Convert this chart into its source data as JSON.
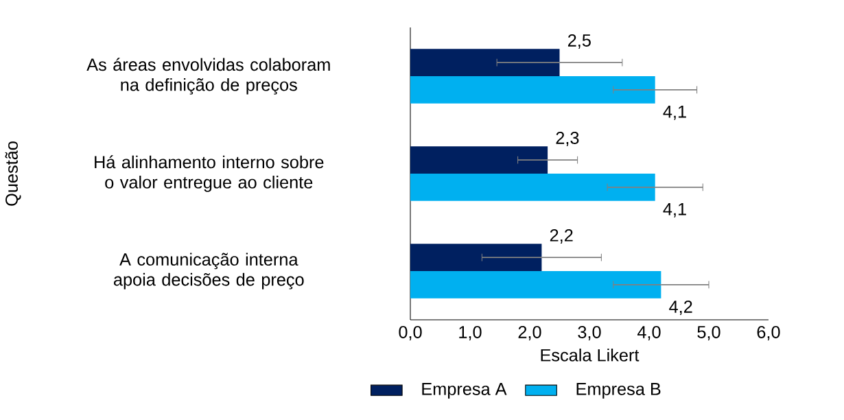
{
  "chart_data": {
    "type": "bar",
    "orientation": "horizontal",
    "categories": [
      "As áreas envolvidas colaboram na definição de preços",
      "Há alinhamento interno sobre o valor entregue ao cliente",
      "A comunicação interna apoia decisões de preço"
    ],
    "series": [
      {
        "name": "Empresa A",
        "color": "#002060",
        "values": [
          2.5,
          2.3,
          2.2
        ],
        "errors": [
          1.05,
          0.5,
          1.0
        ],
        "value_labels": [
          "2,5",
          "2,3",
          "2,2"
        ]
      },
      {
        "name": "Empresa B",
        "color": "#00b0f0",
        "values": [
          4.1,
          4.1,
          4.2
        ],
        "errors": [
          0.7,
          0.8,
          0.8
        ],
        "value_labels": [
          "4,1",
          "4,1",
          "4,2"
        ]
      }
    ],
    "xlabel": "Escala Likert",
    "ylabel": "Questão",
    "xlim": [
      0,
      6
    ],
    "xticks": [
      {
        "value": 0,
        "label": "0,0"
      },
      {
        "value": 1,
        "label": "1,0"
      },
      {
        "value": 2,
        "label": "2,0"
      },
      {
        "value": 3,
        "label": "3,0"
      },
      {
        "value": 4,
        "label": "4,0"
      },
      {
        "value": 5,
        "label": "5,0"
      },
      {
        "value": 6,
        "label": "6,0"
      }
    ],
    "grid": false,
    "legend": "bottom"
  }
}
